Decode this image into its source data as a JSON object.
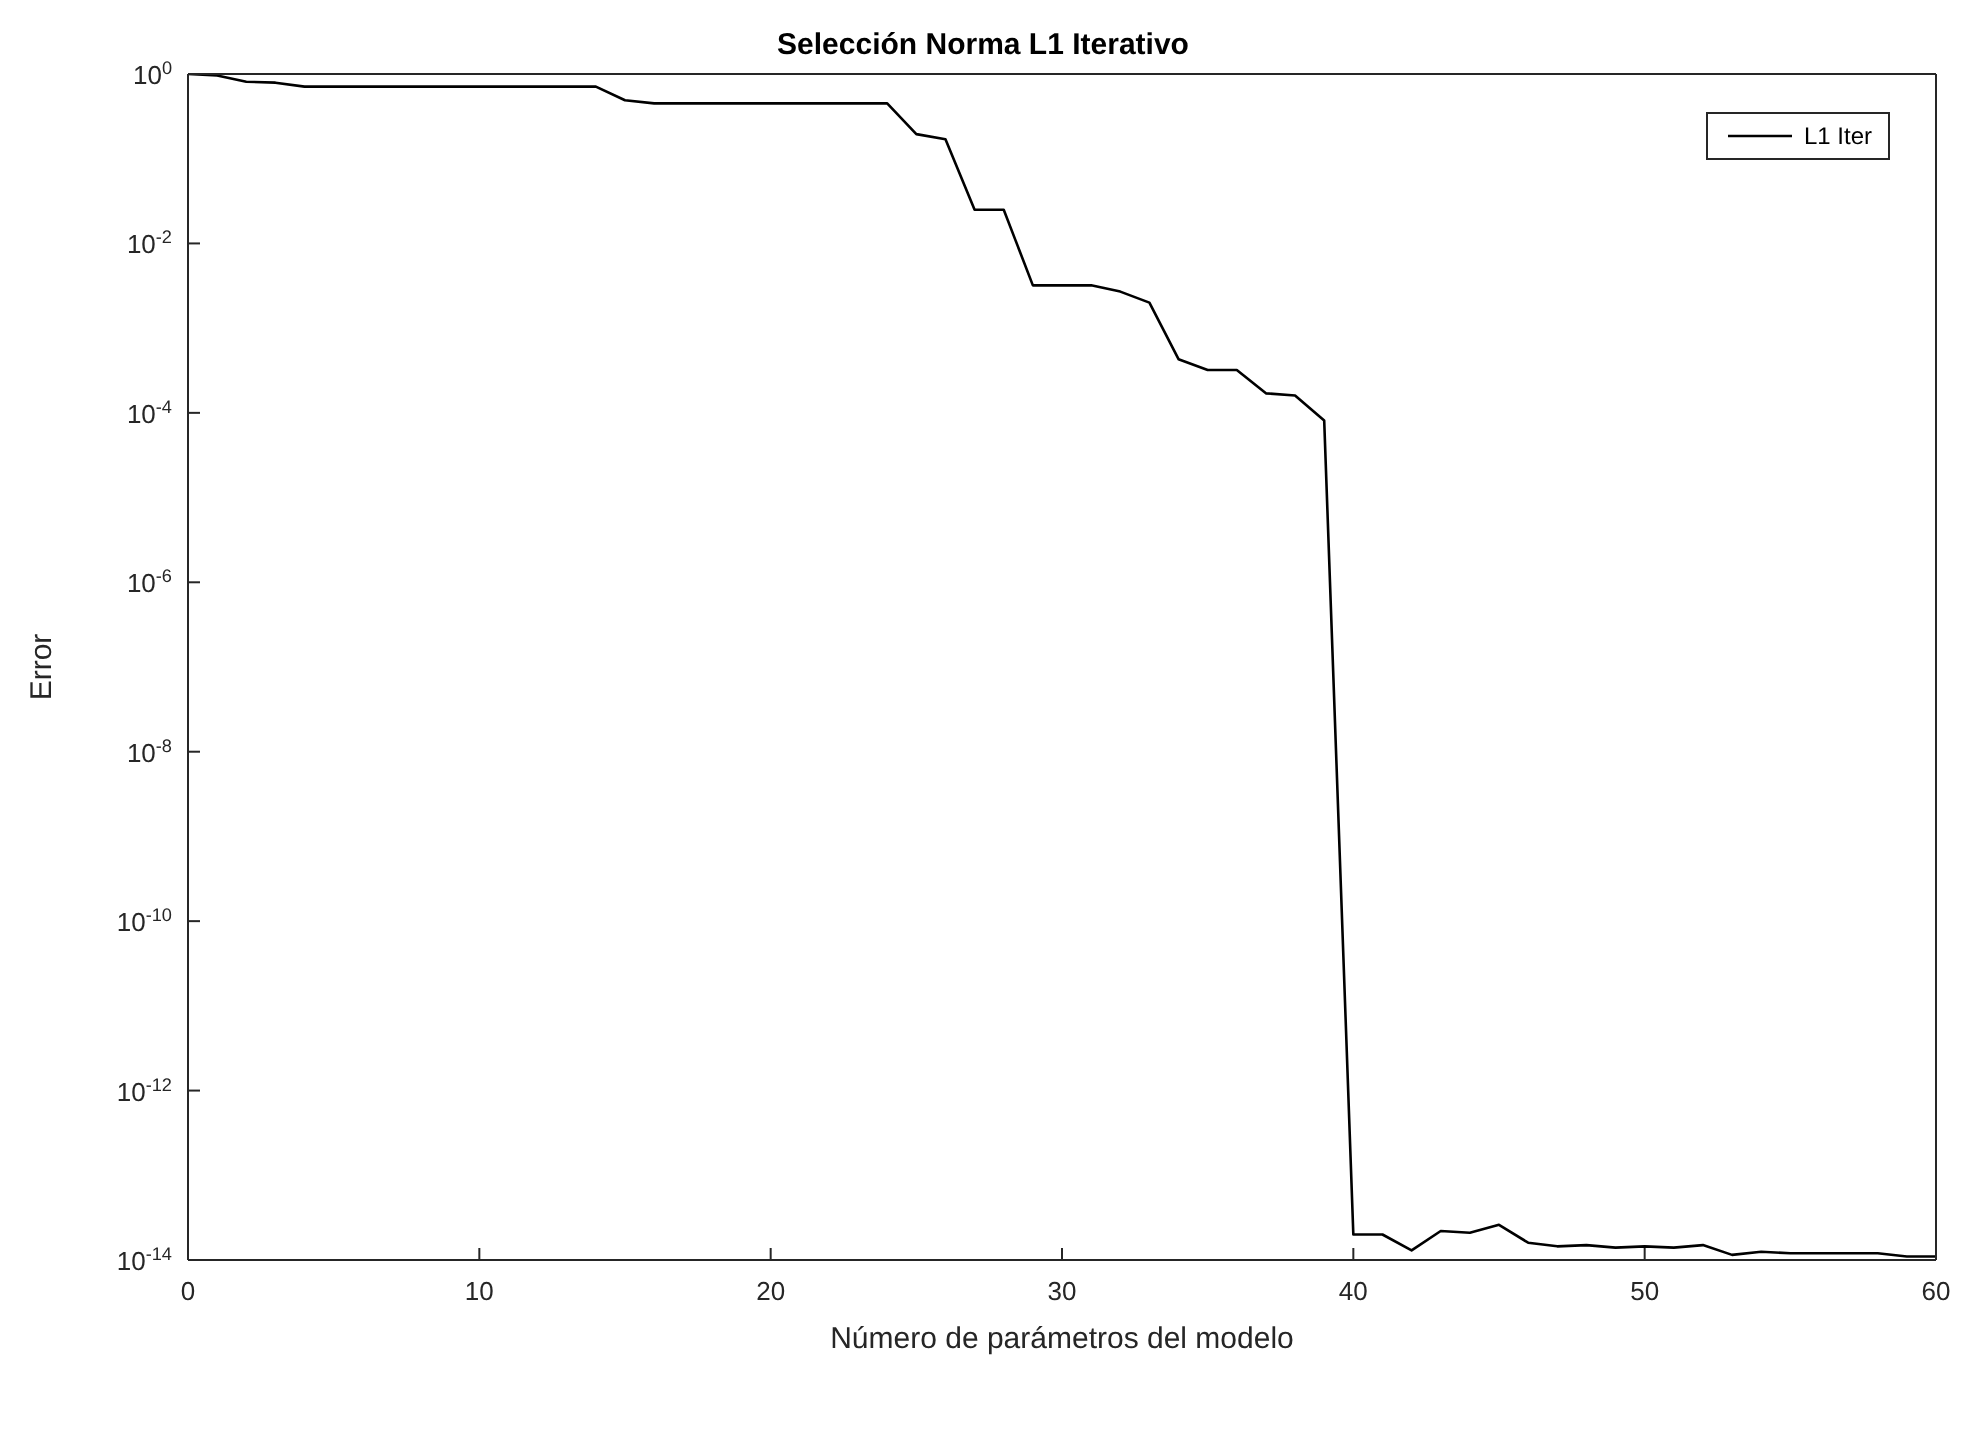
{
  "chart_data": {
    "type": "line",
    "title": "Selección Norma L1 Iterativo",
    "xlabel": "Número de parámetros del modelo",
    "ylabel": "Error",
    "x": [
      0,
      1,
      2,
      3,
      4,
      5,
      6,
      7,
      8,
      9,
      10,
      11,
      12,
      13,
      14,
      15,
      16,
      17,
      18,
      19,
      20,
      21,
      22,
      23,
      24,
      25,
      26,
      27,
      28,
      29,
      30,
      31,
      32,
      33,
      34,
      35,
      36,
      37,
      38,
      39,
      40,
      41,
      42,
      43,
      44,
      45,
      46,
      47,
      48,
      49,
      50,
      51,
      52,
      53,
      54,
      55,
      56,
      57,
      58,
      59,
      60
    ],
    "series": [
      {
        "name": "L1 Iter",
        "color": "#000000",
        "values": [
          1,
          0.96,
          0.81,
          0.79,
          0.71,
          0.71,
          0.71,
          0.71,
          0.71,
          0.71,
          0.71,
          0.71,
          0.71,
          0.71,
          0.71,
          0.49,
          0.45,
          0.45,
          0.45,
          0.45,
          0.45,
          0.45,
          0.45,
          0.45,
          0.45,
          0.195,
          0.17,
          0.025,
          0.025,
          0.0032,
          0.0032,
          0.0032,
          0.0027,
          0.002,
          0.00043,
          0.00032,
          0.00032,
          0.00017,
          0.00016,
          8.1e-05,
          2e-14,
          2e-14,
          1.3e-14,
          2.2e-14,
          2.1e-14,
          2.6e-14,
          1.6e-14,
          1.45e-14,
          1.5e-14,
          1.4e-14,
          1.45e-14,
          1.4e-14,
          1.5e-14,
          1.15e-14,
          1.25e-14,
          1.2e-14,
          1.2e-14,
          1.2e-14,
          1.2e-14,
          1.1e-14,
          1.1e-14
        ]
      }
    ],
    "xlim": [
      0,
      60
    ],
    "xticks": [
      0,
      10,
      20,
      30,
      40,
      50,
      60
    ],
    "ylim": [
      1e-14,
      1
    ],
    "log": true,
    "yticks": [
      {
        "value": 1e-14,
        "label": "10$^{-14}$"
      },
      {
        "value": 1e-12,
        "label": "10$^{-12}$"
      },
      {
        "value": 1e-10,
        "label": "10$^{-10}$"
      },
      {
        "value": 1e-08,
        "label": "10$^{-8}$"
      },
      {
        "value": 1e-06,
        "label": "10$^{-6}$"
      },
      {
        "value": 0.0001,
        "label": "10$^{-4}$"
      },
      {
        "value": 0.01,
        "label": "10$^{-2}$"
      },
      {
        "value": 1,
        "label": "10$^{0}$"
      }
    ],
    "grid": false,
    "legend": "top right",
    "marker": "none",
    "line_style": "solid"
  }
}
